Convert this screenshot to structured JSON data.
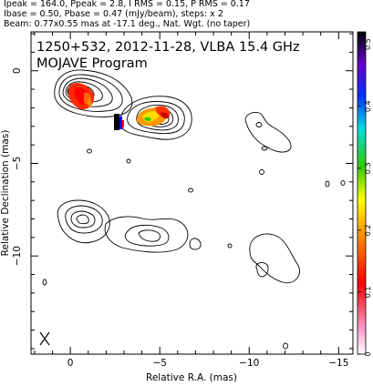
{
  "header": {
    "line1": "Ipeak = 164.0, Ppeak = 2.8, I RMS = 0.15, P RMS = 0.17",
    "line2": "Ibase = 0.50, Pbase = 0.47 (mJy/beam), steps: x 2",
    "line3": "Beam: 0.77x0.55 mas at -17.1 deg., Nat. Wgt. (no taper)"
  },
  "chart_data": {
    "type": "contour",
    "title": "1250+532, 2012-11-28, VLBA 15.4 GHz",
    "subtitle": "MOJAVE Program",
    "xlabel": "Relative R.A. (mas)",
    "ylabel": "Relative Declination (mas)",
    "xlim": [
      2.2,
      -15.8
    ],
    "ylim": [
      -15.3,
      2.1
    ],
    "xticks": [
      0,
      -5,
      -10,
      -15
    ],
    "yticks": [
      0,
      -5,
      -10
    ],
    "colorbar": {
      "ticks": [
        0.5,
        0.4,
        0.3,
        0.2,
        0.1,
        0
      ],
      "range": [
        0,
        0.52
      ]
    },
    "grid": false
  }
}
